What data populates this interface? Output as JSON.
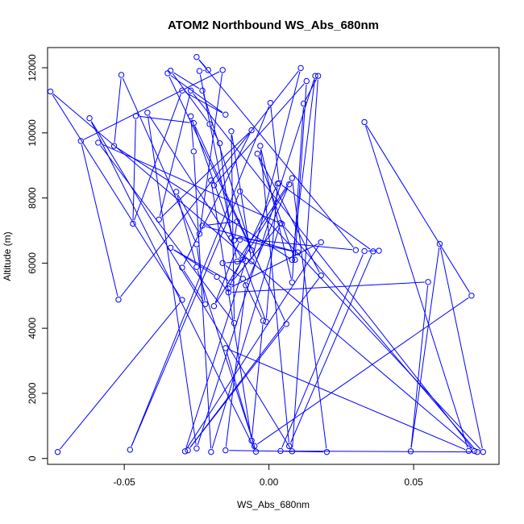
{
  "chart_data": {
    "type": "line",
    "title": "ATOM2 Northbound WS_Abs_680nm",
    "xlabel": "WS_Abs_680nm",
    "ylabel": "Altitude (m)",
    "xlim": [
      -0.0765,
      0.0795
    ],
    "ylim": [
      -180,
      12620
    ],
    "x_ticks": [
      -0.05,
      0.0,
      0.05
    ],
    "x_tick_labels": [
      "-0.05",
      "0.00",
      "0.05"
    ],
    "y_ticks": [
      0,
      2000,
      4000,
      6000,
      8000,
      10000,
      12000
    ],
    "y_tick_labels": [
      "0",
      "2000",
      "4000",
      "6000",
      "8000",
      "10000",
      "12000"
    ],
    "grid": false,
    "series": [
      {
        "line_color": "#0000ff",
        "marker": "open-circle",
        "x": [
          -0.073,
          -0.03,
          -0.0755,
          0.071,
          -0.027,
          -0.038,
          -0.006,
          -0.03,
          -0.022,
          -0.025,
          -0.051,
          -0.0535,
          0.008,
          0.016,
          -0.025,
          -0.042,
          -0.009,
          -0.001,
          0.003,
          -0.014,
          0.018,
          -0.029,
          -0.008,
          -0.016,
          -0.009,
          -0.002,
          -0.006,
          -0.02,
          -0.019,
          0.013,
          0.009,
          -0.004,
          0.018,
          -0.028,
          0.006,
          -0.026,
          -0.046,
          -0.047,
          -0.03,
          -0.015,
          -0.035,
          -0.006,
          -0.023,
          -0.034,
          -0.0205,
          -0.017,
          -0.013,
          0.03,
          -0.025,
          -0.021,
          -0.024,
          -0.011,
          0.008,
          0.02,
          -0.015,
          -0.008,
          0.007,
          -0.019,
          -0.01,
          0.01,
          -0.023,
          -0.011,
          -0.012,
          -0.027,
          -0.026,
          -0.02,
          0.004,
          -0.013,
          -0.034,
          -0.018,
          -0.014,
          0.055,
          0.049,
          0.059,
          0.074,
          -0.01,
          -0.048,
          0.0005,
          0.0035,
          0.036,
          0.007,
          -0.003,
          0.008,
          0.012,
          0.017,
          0.008,
          -0.062,
          -0.0045,
          -0.015,
          0.069,
          0.033,
          0.07,
          -0.005,
          -0.025,
          -0.032,
          -0.024,
          -0.016,
          -0.065,
          -0.052,
          0.011,
          -0.006,
          -0.013,
          -0.012,
          -0.059,
          0.0045,
          0.072,
          0.004,
          0.033,
          0.038
        ],
        "y": [
          200,
          4870,
          11270,
          230,
          11300,
          7340,
          10080,
          5860,
          4740,
          6580,
          11780,
          9600,
          6100,
          11750,
          310,
          10620,
          6110,
          4200,
          8440,
          5220,
          6640,
          220,
          6070,
          6000,
          5520,
          4230,
          550,
          8540,
          8390,
          11590,
          6100,
          9360,
          5620,
          250,
          4130,
          10300,
          10520,
          7210,
          11300,
          10560,
          11830,
          6400,
          11300,
          11910,
          10270,
          9680,
          6780,
          6400,
          12330,
          11930,
          11900,
          6050,
          8610,
          200,
          250,
          5320,
          8420,
          4680,
          6720,
          6330,
          7150,
          7280,
          6700,
          10510,
          9430,
          200,
          7230,
          5410,
          6470,
          5580,
          5100,
          5420,
          220,
          6590,
          200,
          8200,
          270,
          10920,
          8460,
          6360,
          380,
          9600,
          5410,
          10900,
          11750,
          220,
          10450,
          210,
          3390,
          230,
          10330,
          5000,
          380,
          5880,
          8190,
          6900,
          11930,
          9750,
          4880,
          11990,
          6060,
          10050,
          4160,
          9700,
          7200,
          200,
          230,
          6370,
          6380
        ]
      }
    ]
  }
}
